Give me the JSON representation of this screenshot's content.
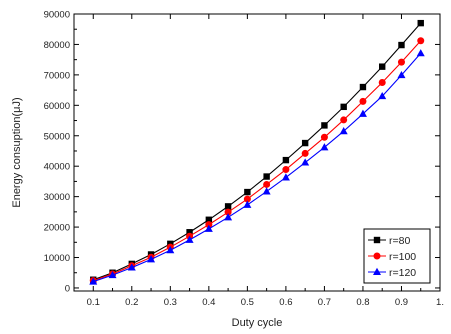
{
  "chart_data": {
    "type": "line",
    "xlabel": "Duty cycle",
    "ylabel": "Energy consuption(μJ)",
    "xlim": [
      0.05,
      1.0
    ],
    "ylim": [
      -1000,
      90000
    ],
    "xticks": [
      0.1,
      0.2,
      0.3,
      0.4,
      0.5,
      0.6,
      0.7,
      0.8,
      0.9,
      1.0
    ],
    "xtick_labels": [
      "0.1",
      "0.2",
      "0.3",
      "0.4",
      "0.5",
      "0.6",
      "0.7",
      "0.8",
      "0.9",
      "1."
    ],
    "yticks": [
      0,
      10000,
      20000,
      30000,
      40000,
      50000,
      60000,
      70000,
      80000,
      90000
    ],
    "ytick_labels": [
      "0",
      "10000",
      "20000",
      "30000",
      "40000",
      "50000",
      "60000",
      "70000",
      "80000",
      "90000"
    ],
    "grid": false,
    "legend_position": "bottom-right",
    "x": [
      0.1,
      0.15,
      0.2,
      0.25,
      0.3,
      0.35,
      0.4,
      0.45,
      0.5,
      0.55,
      0.6,
      0.65,
      0.7,
      0.75,
      0.8,
      0.85,
      0.9,
      0.95
    ],
    "series": [
      {
        "name": "r=80",
        "color": "#000000",
        "marker": "square",
        "values": [
          2700,
          5000,
          7900,
          11000,
          14500,
          18300,
          22400,
          26800,
          31500,
          36600,
          42000,
          47600,
          53400,
          59500,
          66000,
          72700,
          79800,
          87000
        ]
      },
      {
        "name": "r=100",
        "color": "#ff0000",
        "marker": "circle",
        "values": [
          2400,
          4600,
          7300,
          10100,
          13400,
          17000,
          20800,
          24900,
          29200,
          34000,
          38900,
          44200,
          49500,
          55200,
          61300,
          67500,
          74200,
          81200
        ]
      },
      {
        "name": "r=120",
        "color": "#0000ff",
        "marker": "triangle",
        "values": [
          2100,
          4200,
          6700,
          9400,
          12400,
          15800,
          19400,
          23200,
          27300,
          31700,
          36300,
          41200,
          46200,
          51500,
          57200,
          63000,
          69900,
          77100
        ]
      }
    ]
  }
}
